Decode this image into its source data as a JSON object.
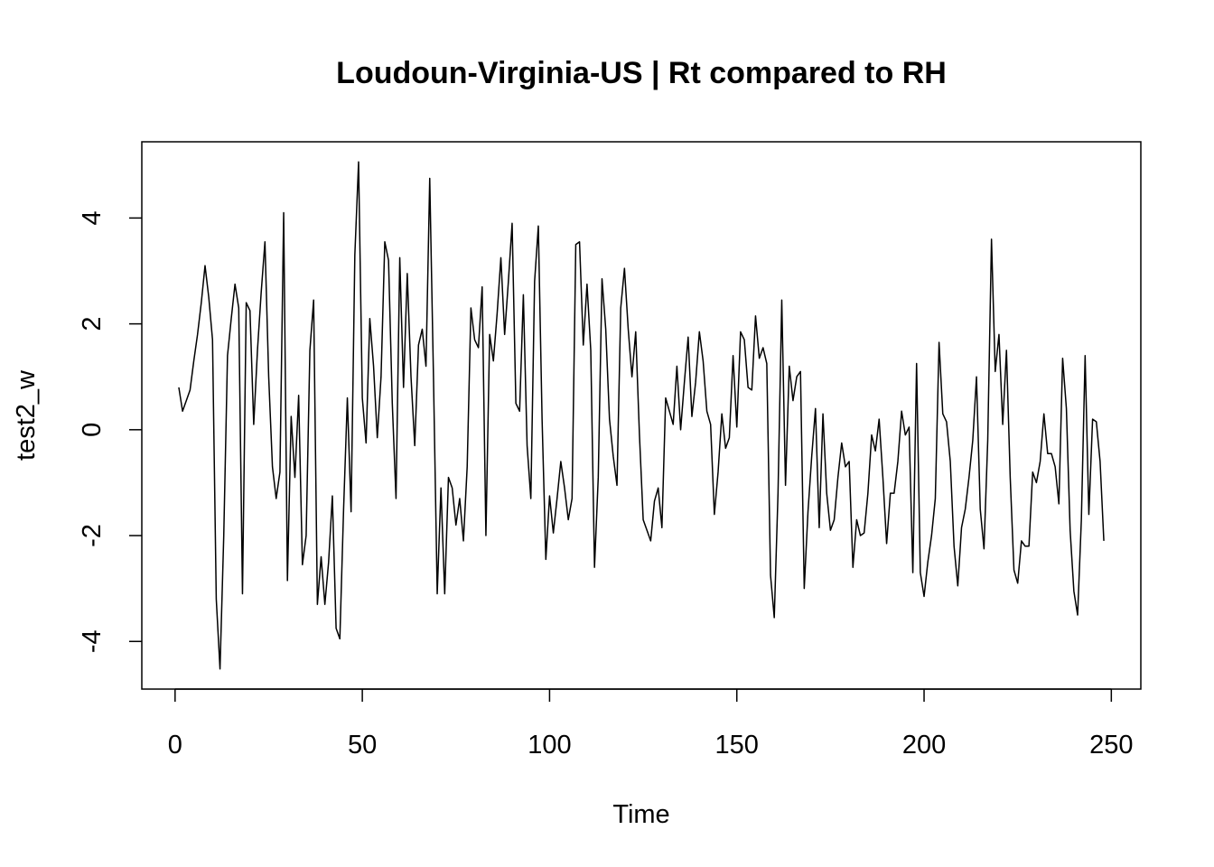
{
  "chart_data": {
    "type": "line",
    "title": "Loudoun-Virginia-US | Rt compared to RH",
    "x_label": "Time",
    "y_label": "test2_w",
    "x": [
      1,
      2,
      3,
      4,
      5,
      6,
      7,
      8,
      9,
      10,
      11,
      12,
      13,
      14,
      15,
      16,
      17,
      18,
      19,
      20,
      21,
      22,
      23,
      24,
      25,
      26,
      27,
      28,
      29,
      30,
      31,
      32,
      33,
      34,
      35,
      36,
      37,
      38,
      39,
      40,
      41,
      42,
      43,
      44,
      45,
      46,
      47,
      48,
      49,
      50,
      51,
      52,
      53,
      54,
      55,
      56,
      57,
      58,
      59,
      60,
      61,
      62,
      63,
      64,
      65,
      66,
      67,
      68,
      69,
      70,
      71,
      72,
      73,
      74,
      75,
      76,
      77,
      78,
      79,
      80,
      81,
      82,
      83,
      84,
      85,
      86,
      87,
      88,
      89,
      90,
      91,
      92,
      93,
      94,
      95,
      96,
      97,
      98,
      99,
      100,
      101,
      102,
      103,
      104,
      105,
      106,
      107,
      108,
      109,
      110,
      111,
      112,
      113,
      114,
      115,
      116,
      117,
      118,
      119,
      120,
      121,
      122,
      123,
      124,
      125,
      126,
      127,
      128,
      129,
      130,
      131,
      132,
      133,
      134,
      135,
      136,
      137,
      138,
      139,
      140,
      141,
      142,
      143,
      144,
      145,
      146,
      147,
      148,
      149,
      150,
      151,
      152,
      153,
      154,
      155,
      156,
      157,
      158,
      159,
      160,
      161,
      162,
      163,
      164,
      165,
      166,
      167,
      168,
      169,
      170,
      171,
      172,
      173,
      174,
      175,
      176,
      177,
      178,
      179,
      180,
      181,
      182,
      183,
      184,
      185,
      186,
      187,
      188,
      189,
      190,
      191,
      192,
      193,
      194,
      195,
      196,
      197,
      198,
      199,
      200,
      201,
      202,
      203,
      204,
      205,
      206,
      207,
      208,
      209,
      210,
      211,
      212,
      213,
      214,
      215,
      216,
      217,
      218,
      219,
      220,
      221,
      222,
      223,
      224,
      225,
      226,
      227,
      228,
      229,
      230,
      231,
      232,
      233,
      234,
      235,
      236,
      237,
      238,
      239,
      240,
      241,
      242,
      243,
      244,
      245,
      246,
      247,
      248
    ],
    "series": [
      {
        "name": "test2_w",
        "color": "#000000",
        "values": [
          0.8,
          0.35,
          0.55,
          0.75,
          1.3,
          1.8,
          2.4,
          3.1,
          2.5,
          1.7,
          -3.2,
          -4.52,
          -2.0,
          1.4,
          2.1,
          2.75,
          2.3,
          -3.1,
          2.4,
          2.25,
          0.1,
          1.5,
          2.6,
          3.55,
          1.0,
          -0.7,
          -1.3,
          -0.8,
          4.1,
          -2.85,
          0.25,
          -0.9,
          0.65,
          -2.55,
          -2.0,
          1.5,
          2.45,
          -3.3,
          -2.4,
          -3.3,
          -2.5,
          -1.25,
          -3.75,
          -3.95,
          -1.5,
          0.6,
          -1.55,
          3.3,
          5.06,
          0.6,
          -0.25,
          2.1,
          1.2,
          -0.15,
          1.0,
          3.55,
          3.2,
          0.5,
          -1.3,
          3.25,
          0.8,
          2.95,
          1.0,
          -0.3,
          1.6,
          1.9,
          1.2,
          4.75,
          1.0,
          -3.1,
          -1.1,
          -3.1,
          -0.9,
          -1.1,
          -1.8,
          -1.3,
          -2.1,
          -0.7,
          2.3,
          1.7,
          1.55,
          2.7,
          -2.0,
          1.8,
          1.3,
          2.2,
          3.25,
          1.8,
          2.8,
          3.9,
          0.5,
          0.35,
          2.55,
          -0.3,
          -1.3,
          2.8,
          3.85,
          0.2,
          -2.45,
          -1.25,
          -1.95,
          -1.3,
          -0.6,
          -1.1,
          -1.7,
          -1.3,
          3.5,
          3.55,
          1.6,
          2.75,
          1.5,
          -2.6,
          -0.9,
          2.85,
          1.9,
          0.2,
          -0.5,
          -1.05,
          2.3,
          3.05,
          1.9,
          1.0,
          1.85,
          -0.1,
          -1.7,
          -1.9,
          -2.1,
          -1.35,
          -1.1,
          -1.85,
          0.6,
          0.35,
          0.1,
          1.2,
          0.0,
          0.9,
          1.75,
          0.25,
          0.9,
          1.85,
          1.3,
          0.35,
          0.1,
          -1.6,
          -0.8,
          0.3,
          -0.35,
          -0.15,
          1.4,
          0.05,
          1.85,
          1.7,
          0.8,
          0.75,
          2.15,
          1.35,
          1.55,
          1.25,
          -2.75,
          -3.55,
          -1.2,
          2.45,
          -1.05,
          1.2,
          0.55,
          1.0,
          1.1,
          -3.0,
          -1.55,
          -0.5,
          0.4,
          -1.85,
          0.3,
          -1.2,
          -1.9,
          -1.7,
          -0.9,
          -0.25,
          -0.7,
          -0.6,
          -2.6,
          -1.7,
          -2.0,
          -1.95,
          -1.2,
          -0.1,
          -0.4,
          0.2,
          -0.9,
          -2.15,
          -1.2,
          -1.2,
          -0.6,
          0.35,
          -0.1,
          0.05,
          -2.7,
          1.25,
          -2.7,
          -3.15,
          -2.5,
          -2.0,
          -1.3,
          1.65,
          0.3,
          0.15,
          -0.6,
          -2.2,
          -2.95,
          -1.85,
          -1.5,
          -0.9,
          -0.2,
          1.0,
          -1.5,
          -2.25,
          -0.2,
          3.6,
          1.1,
          1.8,
          0.1,
          1.5,
          -0.9,
          -2.65,
          -2.9,
          -2.1,
          -2.2,
          -2.2,
          -0.8,
          -1.0,
          -0.6,
          0.3,
          -0.45,
          -0.45,
          -0.7,
          -1.4,
          1.35,
          0.4,
          -1.9,
          -3.05,
          -3.5,
          -1.7,
          1.4,
          -1.6,
          0.2,
          0.15,
          -0.6,
          -2.1
        ]
      }
    ],
    "xlim": [
      -8.88,
      257.88
    ],
    "ylim": [
      -4.9,
      5.44
    ],
    "xticks": [
      0,
      50,
      100,
      150,
      200,
      250
    ],
    "yticks": [
      -4,
      -2,
      0,
      2,
      4
    ]
  }
}
